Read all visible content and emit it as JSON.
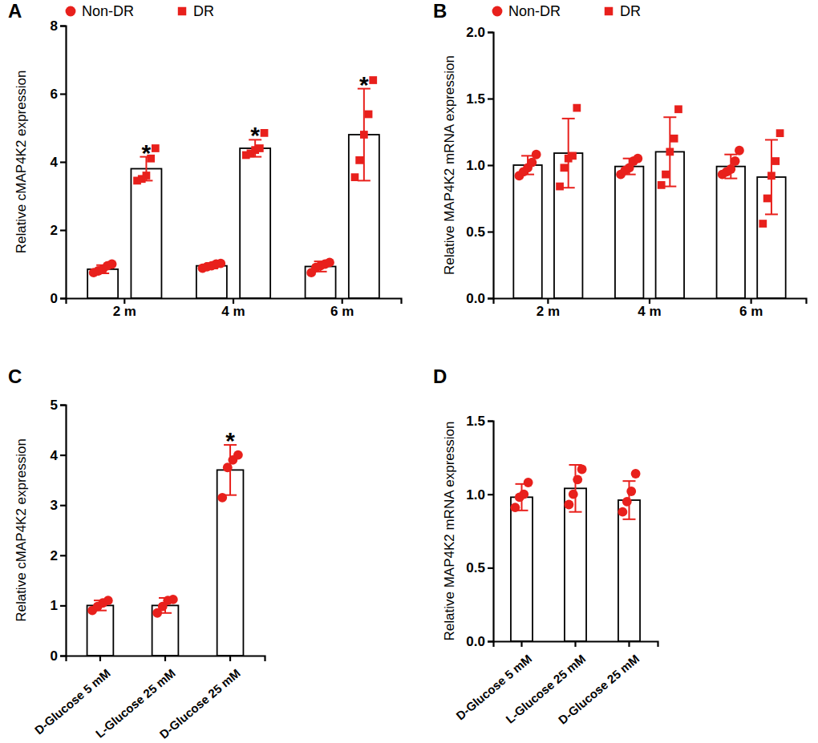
{
  "chart_data": [
    {
      "type": "bar",
      "title": "A",
      "y_label": "Relative cMAP4K2 expression",
      "categories": [
        "2 m",
        "4 m",
        "6 m"
      ],
      "ylim": [
        0,
        8
      ],
      "yticks": [
        0,
        2,
        4,
        6,
        8
      ],
      "legend": "top-left",
      "series": [
        {
          "name": "Non-DR",
          "color": "#e8201c",
          "marker": "circle",
          "values": [
            0.85,
            0.95,
            0.93
          ],
          "errors": [
            0.12,
            0.08,
            0.15
          ],
          "points": [
            [
              0.75,
              0.8,
              0.85,
              0.95,
              1.0
            ],
            [
              0.88,
              0.92,
              0.95,
              1.0,
              1.02
            ],
            [
              0.75,
              0.9,
              0.95,
              1.0,
              1.05
            ]
          ]
        },
        {
          "name": "DR",
          "color": "#e8201c",
          "marker": "square",
          "values": [
            3.8,
            4.4,
            4.8
          ],
          "errors": [
            0.35,
            0.25,
            1.35
          ],
          "points": [
            [
              3.45,
              3.5,
              3.6,
              4.1,
              4.4
            ],
            [
              4.2,
              4.25,
              4.35,
              4.4,
              4.85
            ],
            [
              3.55,
              4.05,
              4.8,
              5.4,
              6.4
            ]
          ]
        }
      ],
      "annotations": [
        {
          "text": "*",
          "category": "2 m",
          "series": "DR"
        },
        {
          "text": "*",
          "category": "4 m",
          "series": "DR"
        },
        {
          "text": "*",
          "category": "6 m",
          "series": "DR"
        }
      ]
    },
    {
      "type": "bar",
      "title": "B",
      "y_label": "Relative MAP4K2 mRNA expression",
      "categories": [
        "2 m",
        "4 m",
        "6 m"
      ],
      "ylim": [
        0,
        2
      ],
      "yticks": [
        {
          "value": 0,
          "label": "0.0"
        },
        {
          "value": 0.5,
          "label": "0.5"
        },
        {
          "value": 1,
          "label": "1.0"
        },
        {
          "value": 1.5,
          "label": "1.5"
        },
        {
          "value": 2,
          "label": "2.0"
        }
      ],
      "legend": "top-left",
      "series": [
        {
          "name": "Non-DR",
          "color": "#e8201c",
          "marker": "circle",
          "values": [
            1.0,
            0.99,
            0.99
          ],
          "errors": [
            0.07,
            0.06,
            0.09
          ],
          "points": [
            [
              0.92,
              0.95,
              0.98,
              1.02,
              1.08
            ],
            [
              0.93,
              0.96,
              0.98,
              1.03,
              1.05
            ],
            [
              0.93,
              0.95,
              0.97,
              1.03,
              1.11
            ]
          ]
        },
        {
          "name": "DR",
          "color": "#e8201c",
          "marker": "square",
          "values": [
            1.09,
            1.1,
            0.91
          ],
          "errors": [
            0.26,
            0.26,
            0.28
          ],
          "points": [
            [
              0.84,
              0.98,
              1.05,
              1.07,
              1.43
            ],
            [
              0.85,
              0.93,
              1.1,
              1.2,
              1.42
            ],
            [
              0.56,
              0.75,
              0.92,
              1.03,
              1.24
            ]
          ]
        }
      ]
    },
    {
      "type": "bar",
      "title": "C",
      "y_label": "Relative cMAP4K2 expression",
      "categories": [
        "D-Glucose 5 mM",
        "L-Glucose 25 mM",
        "D-Glucose 25 mM"
      ],
      "ylim": [
        0,
        5
      ],
      "yticks": [
        0,
        1,
        2,
        3,
        4,
        5
      ],
      "series": [
        {
          "color": "#e8201c",
          "marker": "circle",
          "values": [
            1.0,
            1.0,
            3.7
          ],
          "errors": [
            0.1,
            0.15,
            0.5
          ],
          "points": [
            [
              0.9,
              0.98,
              1.05,
              1.1
            ],
            [
              0.85,
              0.98,
              1.1,
              1.12
            ],
            [
              3.15,
              3.75,
              3.9,
              4.0
            ]
          ]
        }
      ],
      "annotations": [
        {
          "text": "*",
          "category": "D-Glucose 25 mM"
        }
      ]
    },
    {
      "type": "bar",
      "title": "D",
      "y_label": "Relative MAP4K2 mRNA expression",
      "categories": [
        "D-Glucose 5 mM",
        "L-Glucose 25 mM",
        "D-Glucose 25 mM"
      ],
      "ylim": [
        0,
        1.5
      ],
      "yticks": [
        {
          "value": 0,
          "label": "0.0"
        },
        {
          "value": 0.5,
          "label": "0.5"
        },
        {
          "value": 1,
          "label": "1.0"
        },
        {
          "value": 1.5,
          "label": "1.5"
        }
      ],
      "series": [
        {
          "color": "#e8201c",
          "marker": "circle",
          "values": [
            0.98,
            1.04,
            0.96
          ],
          "errors": [
            0.09,
            0.16,
            0.13
          ],
          "points": [
            [
              0.91,
              0.98,
              1.0,
              1.08
            ],
            [
              0.93,
              1.0,
              1.1,
              1.17
            ],
            [
              0.88,
              0.95,
              1.02,
              1.14
            ]
          ]
        }
      ]
    }
  ]
}
